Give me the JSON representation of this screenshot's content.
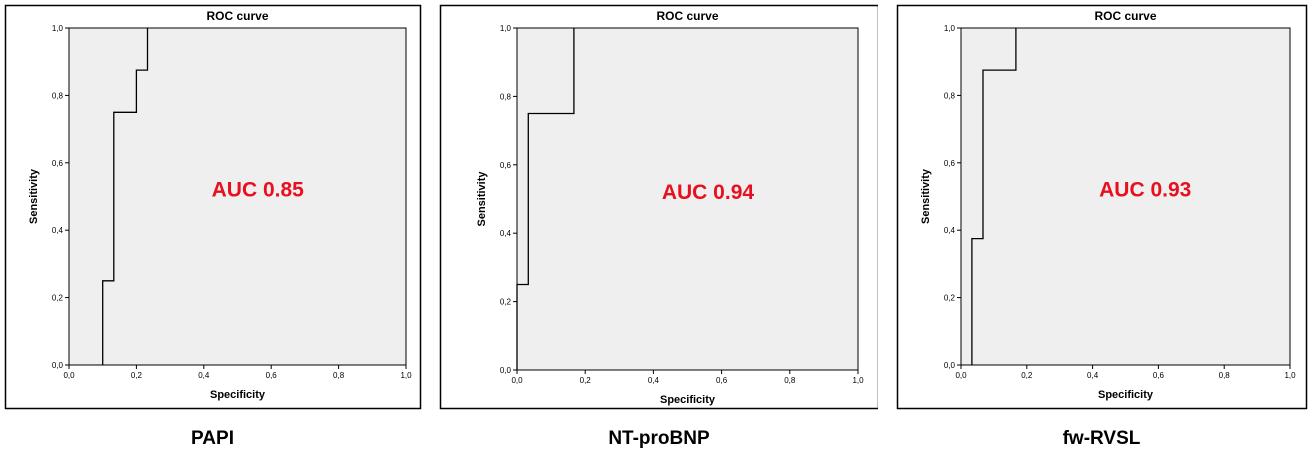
{
  "colors": {
    "plot_bg": "#efefef",
    "annotation": "#e8101e",
    "line": "#000000"
  },
  "chart_data": [
    {
      "type": "line",
      "title": "ROC curve",
      "xlabel": "Specificity",
      "ylabel": "Sensitivity",
      "xlim": [
        0,
        1
      ],
      "ylim": [
        0,
        1
      ],
      "xticks": [
        "0,0",
        "0,2",
        "0,4",
        "0,6",
        "0,8",
        "1,0"
      ],
      "yticks": [
        "0,0",
        "0,2",
        "0,4",
        "0,6",
        "0,8",
        "1,0"
      ],
      "grid": false,
      "annotation": "AUC 0.85",
      "caption": "PAPI",
      "x": [
        0.1,
        0.1,
        0.133,
        0.133,
        0.2,
        0.2,
        0.233,
        0.233
      ],
      "y": [
        0.0,
        0.25,
        0.25,
        0.75,
        0.75,
        0.875,
        0.875,
        1.0
      ]
    },
    {
      "type": "line",
      "title": "ROC curve",
      "xlabel": "Specificity",
      "ylabel": "Sensitivity",
      "xlim": [
        0,
        1
      ],
      "ylim": [
        0,
        1
      ],
      "xticks": [
        "0,0",
        "0,2",
        "0,4",
        "0,6",
        "0,8",
        "1,0"
      ],
      "yticks": [
        "0,0",
        "0,2",
        "0,4",
        "0,6",
        "0,8",
        "1,0"
      ],
      "grid": false,
      "annotation": "AUC 0.94",
      "caption": "NT-proBNP",
      "x": [
        0.0,
        0.0,
        0.033,
        0.033,
        0.167,
        0.167
      ],
      "y": [
        0.0,
        0.25,
        0.25,
        0.75,
        0.75,
        1.0
      ]
    },
    {
      "type": "line",
      "title": "ROC curve",
      "xlabel": "Specificity",
      "ylabel": "Sensitivity",
      "xlim": [
        0,
        1
      ],
      "ylim": [
        0,
        1
      ],
      "xticks": [
        "0,0",
        "0,2",
        "0,4",
        "0,6",
        "0,8",
        "1,0"
      ],
      "yticks": [
        "0,0",
        "0,2",
        "0,4",
        "0,6",
        "0,8",
        "1,0"
      ],
      "grid": false,
      "annotation": "AUC 0.93",
      "caption": "fw-RVSL",
      "x": [
        0.033,
        0.033,
        0.067,
        0.067,
        0.167,
        0.167
      ],
      "y": [
        0.0,
        0.375,
        0.375,
        0.875,
        0.875,
        1.0
      ]
    }
  ]
}
